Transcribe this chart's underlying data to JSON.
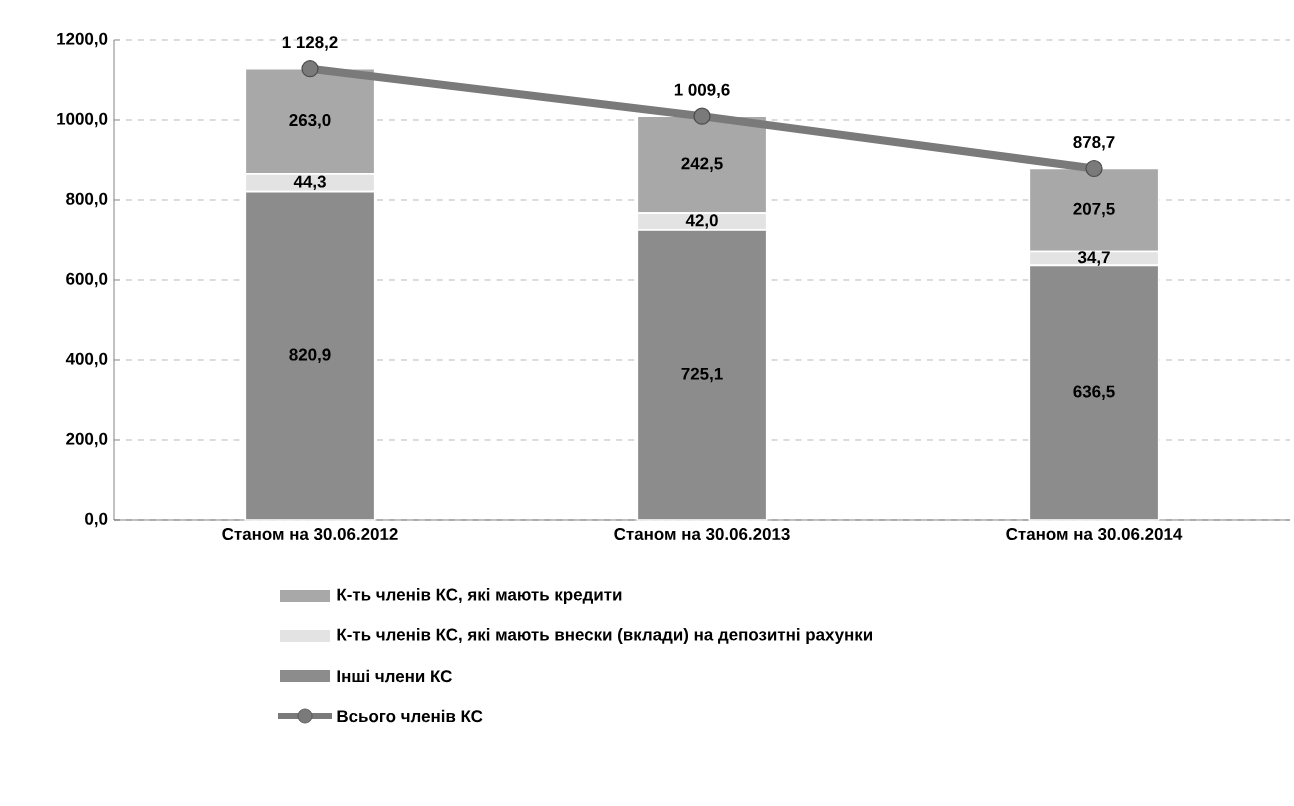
{
  "chart_data": {
    "type": "bar",
    "stacked": true,
    "categories": [
      "Станом на 30.06.2012",
      "Станом на 30.06.2013",
      "Станом на 30.06.2014"
    ],
    "series": [
      {
        "name": "Інші члени КС",
        "color": "#8c8c8c",
        "values": [
          820.9,
          725.1,
          636.5
        ],
        "value_labels": [
          "820,9",
          "725,1",
          "636,5"
        ]
      },
      {
        "name": "К-ть членів КС, які мають внески (вклади) на депозитні рахунки",
        "color": "#e3e3e3",
        "values": [
          44.3,
          42.0,
          34.7
        ],
        "value_labels": [
          "44,3",
          "42,0",
          "34,7"
        ]
      },
      {
        "name": "К-ть членів КС, які мають кредити",
        "color": "#a8a8a8",
        "values": [
          263.0,
          242.5,
          207.5
        ],
        "value_labels": [
          "263,0",
          "242,5",
          "207,5"
        ]
      },
      {
        "name": "Всього членів КС",
        "type": "line",
        "color": "#7a7a7a",
        "marker": "circle",
        "values": [
          1128.2,
          1009.6,
          878.7
        ],
        "value_labels": [
          "1 128,2",
          "1 009,6",
          "878,7"
        ]
      }
    ],
    "ylim": [
      0,
      1200
    ],
    "yticks": [
      {
        "value": 0,
        "label": "0,0"
      },
      {
        "value": 200,
        "label": "200,0"
      },
      {
        "value": 400,
        "label": "400,0"
      },
      {
        "value": 600,
        "label": "600,0"
      },
      {
        "value": 800,
        "label": "800,0"
      },
      {
        "value": 1000,
        "label": "1000,0"
      },
      {
        "value": 1200,
        "label": "1200,0"
      }
    ],
    "grid": "y",
    "legend": "bottom"
  }
}
